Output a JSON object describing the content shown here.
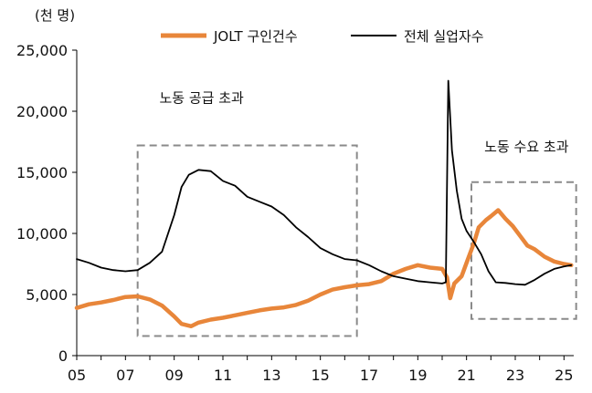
{
  "chart_data": {
    "type": "line",
    "unit_label": "(천 명)",
    "x_tick_labels": [
      "05",
      "07",
      "09",
      "11",
      "13",
      "15",
      "17",
      "19",
      "21",
      "23",
      "25"
    ],
    "y_tick_labels": [
      "0",
      "5,000",
      "10,000",
      "15,000",
      "20,000",
      "25,000"
    ],
    "xlim": [
      2005,
      2025.4
    ],
    "ylim": [
      0,
      25000
    ],
    "grid": false,
    "legend_position": "top",
    "series": [
      {
        "name": "JOLT 구인건수",
        "color": "#E8863A",
        "points": [
          [
            2005.0,
            3900
          ],
          [
            2005.5,
            4200
          ],
          [
            2006.0,
            4350
          ],
          [
            2006.5,
            4550
          ],
          [
            2007.0,
            4800
          ],
          [
            2007.5,
            4850
          ],
          [
            2008.0,
            4600
          ],
          [
            2008.5,
            4100
          ],
          [
            2009.0,
            3200
          ],
          [
            2009.3,
            2600
          ],
          [
            2009.7,
            2400
          ],
          [
            2010.0,
            2700
          ],
          [
            2010.5,
            2950
          ],
          [
            2011.0,
            3100
          ],
          [
            2011.5,
            3300
          ],
          [
            2012.0,
            3500
          ],
          [
            2012.5,
            3700
          ],
          [
            2013.0,
            3850
          ],
          [
            2013.5,
            3950
          ],
          [
            2014.0,
            4150
          ],
          [
            2014.5,
            4500
          ],
          [
            2015.0,
            5000
          ],
          [
            2015.5,
            5400
          ],
          [
            2016.0,
            5600
          ],
          [
            2016.5,
            5750
          ],
          [
            2017.0,
            5850
          ],
          [
            2017.5,
            6100
          ],
          [
            2018.0,
            6700
          ],
          [
            2018.5,
            7100
          ],
          [
            2019.0,
            7400
          ],
          [
            2019.5,
            7200
          ],
          [
            2020.0,
            7100
          ],
          [
            2020.2,
            6400
          ],
          [
            2020.33,
            4700
          ],
          [
            2020.5,
            5900
          ],
          [
            2020.8,
            6500
          ],
          [
            2021.0,
            7600
          ],
          [
            2021.3,
            9200
          ],
          [
            2021.5,
            10500
          ],
          [
            2021.8,
            11100
          ],
          [
            2022.0,
            11400
          ],
          [
            2022.3,
            11900
          ],
          [
            2022.6,
            11200
          ],
          [
            2022.9,
            10600
          ],
          [
            2023.2,
            9800
          ],
          [
            2023.5,
            9000
          ],
          [
            2023.8,
            8700
          ],
          [
            2024.2,
            8100
          ],
          [
            2024.6,
            7700
          ],
          [
            2025.0,
            7500
          ],
          [
            2025.3,
            7400
          ]
        ]
      },
      {
        "name": "전체 실업자수",
        "color": "#000000",
        "points": [
          [
            2005.0,
            7900
          ],
          [
            2005.5,
            7600
          ],
          [
            2006.0,
            7200
          ],
          [
            2006.5,
            7000
          ],
          [
            2007.0,
            6900
          ],
          [
            2007.5,
            7000
          ],
          [
            2008.0,
            7600
          ],
          [
            2008.5,
            8500
          ],
          [
            2009.0,
            11500
          ],
          [
            2009.3,
            13800
          ],
          [
            2009.6,
            14800
          ],
          [
            2010.0,
            15200
          ],
          [
            2010.5,
            15100
          ],
          [
            2011.0,
            14300
          ],
          [
            2011.5,
            13900
          ],
          [
            2012.0,
            13000
          ],
          [
            2012.5,
            12600
          ],
          [
            2013.0,
            12200
          ],
          [
            2013.5,
            11500
          ],
          [
            2014.0,
            10500
          ],
          [
            2014.5,
            9700
          ],
          [
            2015.0,
            8800
          ],
          [
            2015.5,
            8300
          ],
          [
            2016.0,
            7900
          ],
          [
            2016.5,
            7800
          ],
          [
            2017.0,
            7400
          ],
          [
            2017.5,
            6900
          ],
          [
            2018.0,
            6500
          ],
          [
            2018.5,
            6300
          ],
          [
            2019.0,
            6100
          ],
          [
            2019.5,
            6000
          ],
          [
            2020.0,
            5900
          ],
          [
            2020.15,
            6000
          ],
          [
            2020.25,
            22500
          ],
          [
            2020.4,
            16800
          ],
          [
            2020.6,
            13500
          ],
          [
            2020.8,
            11200
          ],
          [
            2021.0,
            10200
          ],
          [
            2021.3,
            9300
          ],
          [
            2021.6,
            8300
          ],
          [
            2021.9,
            6900
          ],
          [
            2022.2,
            6000
          ],
          [
            2022.6,
            5950
          ],
          [
            2023.0,
            5850
          ],
          [
            2023.4,
            5800
          ],
          [
            2023.8,
            6200
          ],
          [
            2024.2,
            6700
          ],
          [
            2024.6,
            7100
          ],
          [
            2025.0,
            7300
          ],
          [
            2025.3,
            7400
          ]
        ]
      }
    ],
    "annotations": [
      {
        "text": "노동 공급 초과",
        "box": {
          "x": [
            2007.5,
            2016.5
          ],
          "y": [
            1600,
            17200
          ]
        }
      },
      {
        "text": "노동 수요 초과",
        "box": {
          "x": [
            2021.2,
            2025.5
          ],
          "y": [
            3000,
            14200
          ]
        }
      }
    ]
  }
}
